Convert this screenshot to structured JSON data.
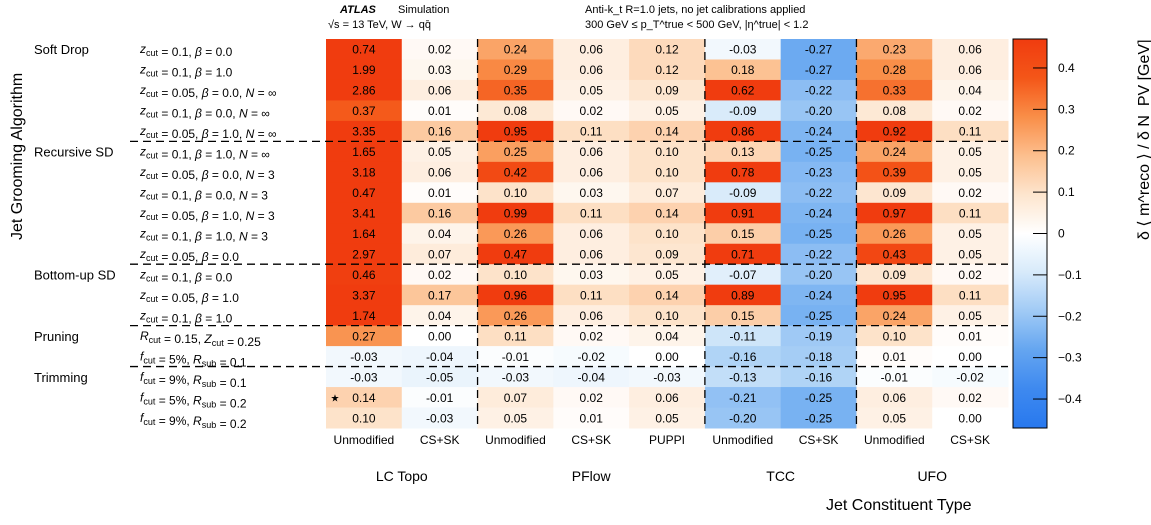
{
  "header": {
    "atlas": "ATLAS",
    "simulation": "Simulation",
    "energy": "√s = 13 TeV, W → qq̄",
    "jets": "Anti-k_t R=1.0 jets, no jet calibrations applied",
    "cuts": "300 GeV ≤ p_T^true < 500 GeV, |η^true| < 1.2"
  },
  "chart_data": {
    "type": "heatmap",
    "ylabel": "Jet Grooming Algorithm",
    "xlabel": "Jet Constituent Type",
    "colorbar_label": "δ ⟨ m^reco ⟩ / δ N_PV [GeV]",
    "zlim": [
      -0.47,
      0.47
    ],
    "colorbar_ticks": [
      "0.4",
      "0.3",
      "0.2",
      "0.1",
      "0",
      "−0.1",
      "−0.2",
      "−0.3",
      "−0.4"
    ],
    "colorbar_tick_values": [
      0.4,
      0.3,
      0.2,
      0.1,
      0,
      -0.1,
      -0.2,
      -0.3,
      -0.4
    ],
    "columns": [
      "Unmodified",
      "CS+SK",
      "Unmodified",
      "CS+SK",
      "PUPPI",
      "Unmodified",
      "CS+SK",
      "Unmodified",
      "CS+SK"
    ],
    "families": [
      {
        "name": "LC Topo",
        "columns": 2
      },
      {
        "name": "PFlow",
        "columns": 3
      },
      {
        "name": "TCC",
        "columns": 2
      },
      {
        "name": "UFO",
        "columns": 2
      }
    ],
    "groups": [
      {
        "name": "Soft Drop",
        "row": 0
      },
      {
        "name": "Recursive SD",
        "row": 5
      },
      {
        "name": "Bottom-up SD",
        "row": 11
      },
      {
        "name": "Pruning",
        "row": 14
      },
      {
        "name": "Trimming",
        "row": 16
      }
    ],
    "rows": [
      "z_cut = 0.1, β = 0.0",
      "z_cut = 0.1, β = 1.0",
      "z_cut = 0.05, β = 0.0, N = ∞",
      "z_cut = 0.1, β = 0.0, N = ∞",
      "z_cut = 0.05, β = 1.0, N = ∞",
      "z_cut = 0.1, β = 1.0, N = ∞",
      "z_cut = 0.05, β = 0.0, N = 3",
      "z_cut = 0.1, β = 0.0, N = 3",
      "z_cut = 0.05, β = 1.0, N = 3",
      "z_cut = 0.1, β = 1.0, N = 3",
      "z_cut = 0.05, β = 0.0",
      "z_cut = 0.1, β = 0.0",
      "z_cut = 0.05, β = 1.0",
      "z_cut = 0.1, β = 1.0",
      "R_cut = 0.15, Z_cut = 0.25",
      "f_cut = 5%, R_sub = 0.1",
      "f_cut = 9%, R_sub = 0.1",
      "f_cut = 5%, R_sub = 0.2",
      "f_cut = 9%, R_sub = 0.2"
    ],
    "values": [
      [
        0.74,
        0.02,
        0.24,
        0.06,
        0.12,
        -0.03,
        -0.27,
        0.23,
        0.06
      ],
      [
        1.99,
        0.03,
        0.29,
        0.06,
        0.12,
        0.18,
        -0.27,
        0.28,
        0.06
      ],
      [
        2.86,
        0.06,
        0.35,
        0.05,
        0.09,
        0.62,
        -0.22,
        0.33,
        0.04
      ],
      [
        0.37,
        0.01,
        0.08,
        0.02,
        0.05,
        -0.09,
        -0.2,
        0.08,
        0.02
      ],
      [
        3.35,
        0.16,
        0.95,
        0.11,
        0.14,
        0.86,
        -0.24,
        0.92,
        0.11
      ],
      [
        1.65,
        0.05,
        0.25,
        0.06,
        0.1,
        0.13,
        -0.25,
        0.24,
        0.05
      ],
      [
        3.18,
        0.06,
        0.42,
        0.06,
        0.1,
        0.78,
        -0.23,
        0.39,
        0.05
      ],
      [
        0.47,
        0.01,
        0.1,
        0.03,
        0.07,
        -0.09,
        -0.22,
        0.09,
        0.02
      ],
      [
        3.41,
        0.16,
        0.99,
        0.11,
        0.14,
        0.91,
        -0.24,
        0.97,
        0.11
      ],
      [
        1.64,
        0.04,
        0.26,
        0.06,
        0.1,
        0.15,
        -0.25,
        0.26,
        0.05
      ],
      [
        2.97,
        0.07,
        0.47,
        0.06,
        0.09,
        0.71,
        -0.22,
        0.43,
        0.05
      ],
      [
        0.46,
        0.02,
        0.1,
        0.03,
        0.05,
        -0.07,
        -0.2,
        0.09,
        0.02
      ],
      [
        3.37,
        0.17,
        0.96,
        0.11,
        0.14,
        0.89,
        -0.24,
        0.95,
        0.11
      ],
      [
        1.74,
        0.04,
        0.26,
        0.06,
        0.1,
        0.15,
        -0.25,
        0.24,
        0.05
      ],
      [
        0.27,
        0.0,
        0.11,
        0.02,
        0.04,
        -0.11,
        -0.19,
        0.1,
        0.01
      ],
      [
        -0.03,
        -0.04,
        -0.01,
        -0.02,
        0.0,
        -0.16,
        -0.18,
        0.01,
        0.0
      ],
      [
        -0.03,
        -0.05,
        -0.03,
        -0.04,
        -0.03,
        -0.13,
        -0.16,
        -0.01,
        -0.02
      ],
      [
        0.14,
        -0.01,
        0.07,
        0.02,
        0.06,
        -0.21,
        -0.25,
        0.06,
        0.02
      ],
      [
        0.1,
        -0.03,
        0.05,
        0.01,
        0.05,
        -0.2,
        -0.25,
        0.05,
        0.0
      ]
    ],
    "marker": {
      "row": 17,
      "col": 0,
      "symbol": "★"
    }
  }
}
